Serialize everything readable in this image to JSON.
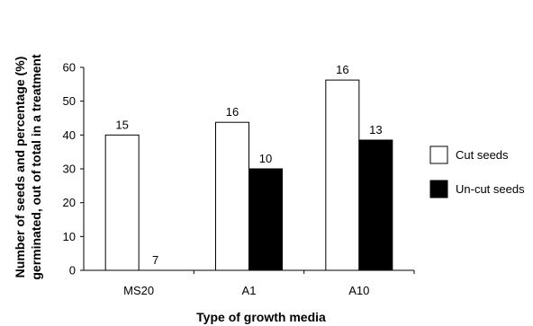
{
  "chart_data": {
    "type": "bar",
    "categories": [
      "MS20",
      "A1",
      "A10"
    ],
    "series": [
      {
        "name": "Cut seeds",
        "values": [
          40,
          43.75,
          56.25
        ],
        "data_labels": [
          "15",
          "16",
          "16"
        ],
        "fill": "#ffffff",
        "stroke": "#000000"
      },
      {
        "name": "Un-cut seeds",
        "values": [
          0,
          30,
          38.5
        ],
        "data_labels": [
          "7",
          "10",
          "13"
        ],
        "fill": "#000000",
        "stroke": "#000000"
      }
    ],
    "title": "",
    "xlabel": "Type of growth media",
    "ylabel_lines": [
      "Number of seeds and percentage (%)",
      "germinated, out of total in a treatment"
    ],
    "ylim": [
      0,
      60
    ],
    "yticks": [
      "0",
      "10",
      "20",
      "30",
      "40",
      "50",
      "60"
    ],
    "grid": false,
    "legend_position": "right"
  }
}
